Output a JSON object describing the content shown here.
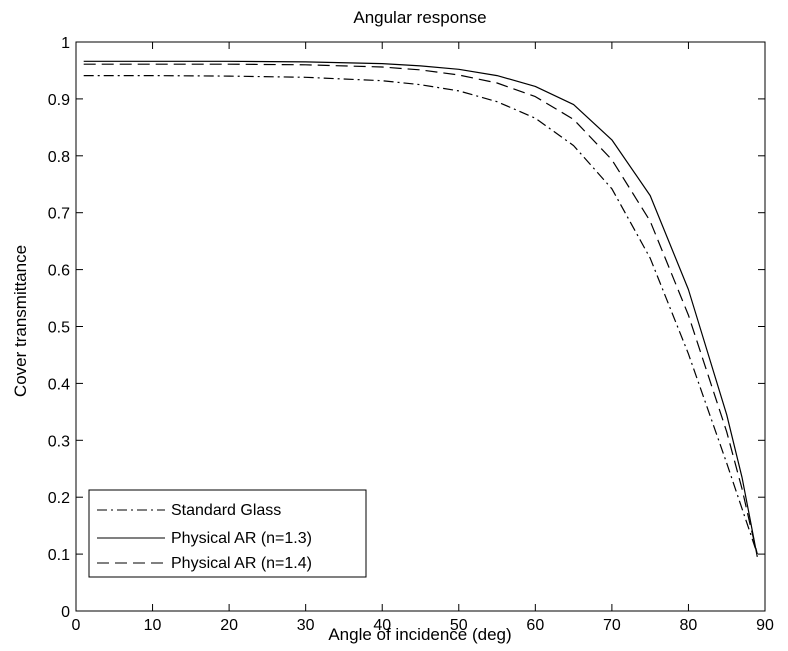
{
  "chart_data": {
    "type": "line",
    "title": "Angular response",
    "xlabel": "Angle of incidence (deg)",
    "ylabel": "Cover transmittance",
    "xlim": [
      0,
      90
    ],
    "ylim": [
      0,
      1
    ],
    "xticks": [
      0,
      10,
      20,
      30,
      40,
      50,
      60,
      70,
      80,
      90
    ],
    "yticks": [
      0,
      0.1,
      0.2,
      0.3,
      0.4,
      0.5,
      0.6,
      0.7,
      0.8,
      0.9,
      1
    ],
    "xtick_labels": [
      "0",
      "10",
      "20",
      "30",
      "40",
      "50",
      "60",
      "70",
      "80",
      "90"
    ],
    "ytick_labels": [
      "0",
      "0.1",
      "0.2",
      "0.3",
      "0.4",
      "0.5",
      "0.6",
      "0.7",
      "0.8",
      "0.9",
      "1"
    ],
    "grid": false,
    "legend_position": "bottom-left",
    "series": [
      {
        "name": "Standard Glass",
        "line_style": "dash-dot",
        "color": "#000000",
        "x": [
          1,
          10,
          20,
          30,
          40,
          45,
          50,
          55,
          60,
          65,
          70,
          75,
          80,
          85,
          87,
          88,
          89
        ],
        "y": [
          0.941,
          0.941,
          0.94,
          0.938,
          0.932,
          0.925,
          0.914,
          0.895,
          0.866,
          0.818,
          0.742,
          0.62,
          0.452,
          0.26,
          0.18,
          0.14,
          0.1
        ]
      },
      {
        "name": "Physical AR (n=1.3)",
        "line_style": "solid",
        "color": "#000000",
        "x": [
          1,
          10,
          20,
          30,
          40,
          45,
          50,
          55,
          60,
          65,
          70,
          75,
          80,
          85,
          87,
          88,
          89
        ],
        "y": [
          0.966,
          0.966,
          0.966,
          0.965,
          0.962,
          0.958,
          0.952,
          0.941,
          0.922,
          0.89,
          0.828,
          0.73,
          0.565,
          0.345,
          0.235,
          0.165,
          0.095
        ]
      },
      {
        "name": "Physical AR (n=1.4)",
        "line_style": "dashed",
        "color": "#000000",
        "x": [
          1,
          10,
          20,
          30,
          40,
          45,
          50,
          55,
          60,
          65,
          70,
          75,
          80,
          85,
          87,
          88,
          89
        ],
        "y": [
          0.961,
          0.961,
          0.961,
          0.96,
          0.956,
          0.951,
          0.942,
          0.928,
          0.904,
          0.864,
          0.793,
          0.685,
          0.52,
          0.315,
          0.215,
          0.155,
          0.1
        ]
      }
    ]
  }
}
